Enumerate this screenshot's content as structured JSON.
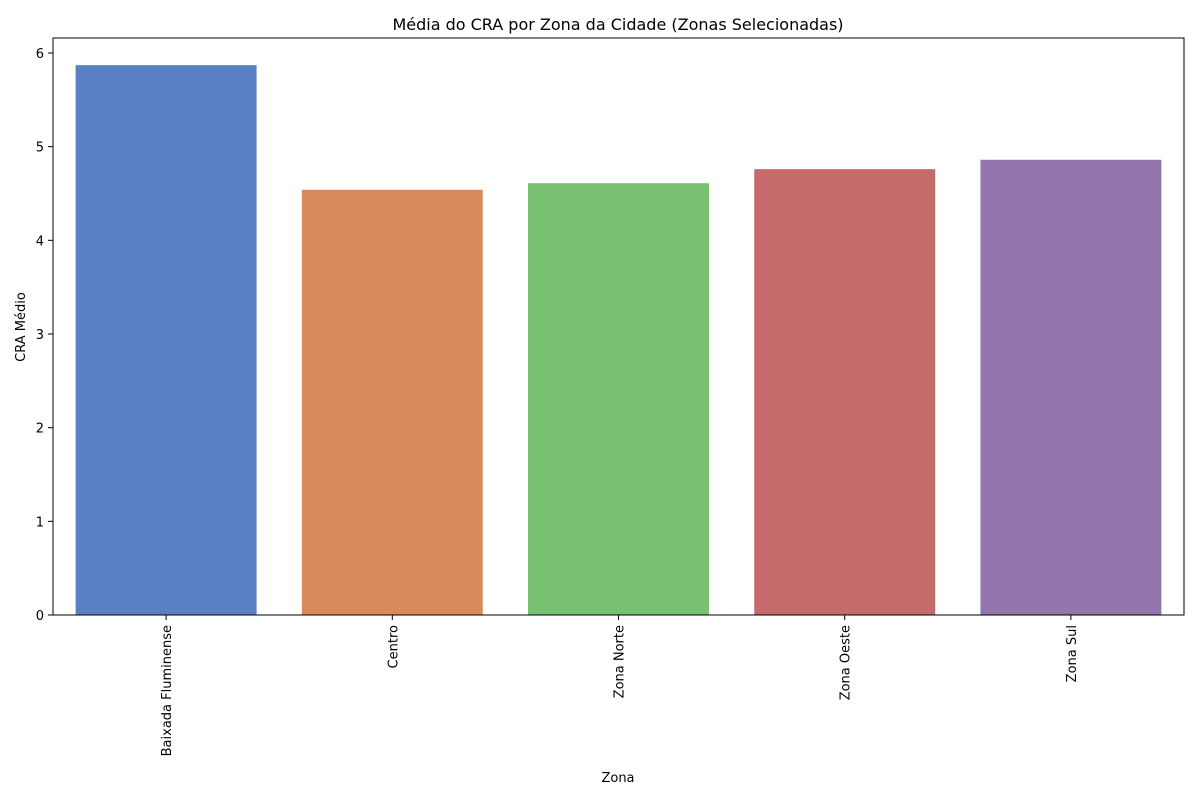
{
  "chart_data": {
    "type": "bar",
    "title": "Média do CRA por Zona da Cidade (Zonas Selecionadas)",
    "xlabel": "Zona",
    "ylabel": "CRA Médio",
    "categories": [
      "Baixada Fluminense",
      "Centro",
      "Zona Norte",
      "Zona Oeste",
      "Zona Sul"
    ],
    "values": [
      5.87,
      4.54,
      4.61,
      4.76,
      4.86
    ],
    "colors": [
      "#5a7fc2",
      "#d88a5e",
      "#77c170",
      "#c56c6b",
      "#9475ad"
    ],
    "ylim": [
      0,
      6.16
    ],
    "yticks": [
      0,
      1,
      2,
      3,
      4,
      5,
      6
    ],
    "grid": false,
    "legend": "none"
  }
}
